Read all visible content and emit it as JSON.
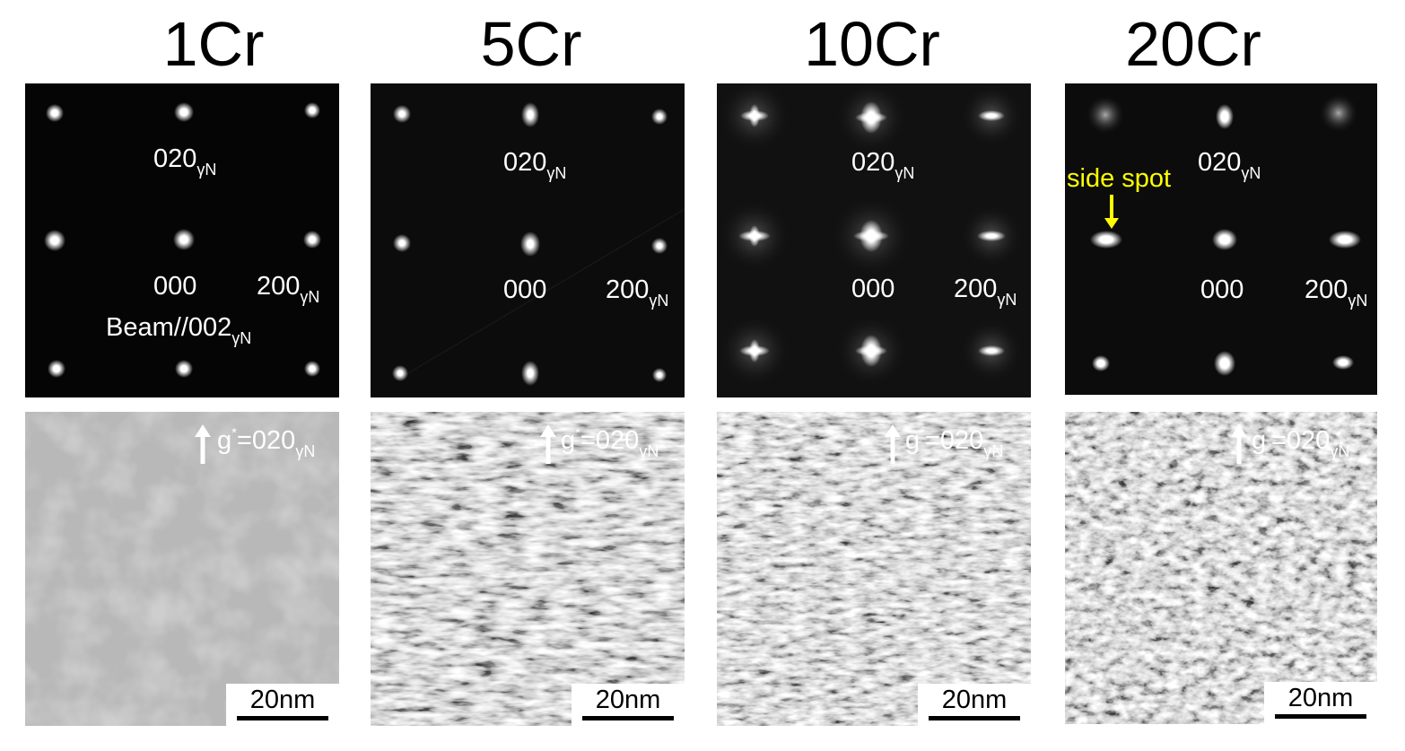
{
  "columns": [
    {
      "title": "1Cr"
    },
    {
      "title": "5Cr"
    },
    {
      "title": "10Cr"
    },
    {
      "title": "20Cr"
    }
  ],
  "diffraction": {
    "spot_020": "020",
    "spot_000": "000",
    "spot_200": "200",
    "subscript": "γN",
    "beam_prefix": "Beam//002",
    "side_spot": "side spot"
  },
  "brightfield": {
    "g_prefix": "g",
    "g_sup": "*",
    "g_value": "=020",
    "g_sub": "γN",
    "scale_label": "20nm"
  },
  "colors": {
    "side_spot_label": "#ffff00",
    "label": "#ffffff"
  }
}
